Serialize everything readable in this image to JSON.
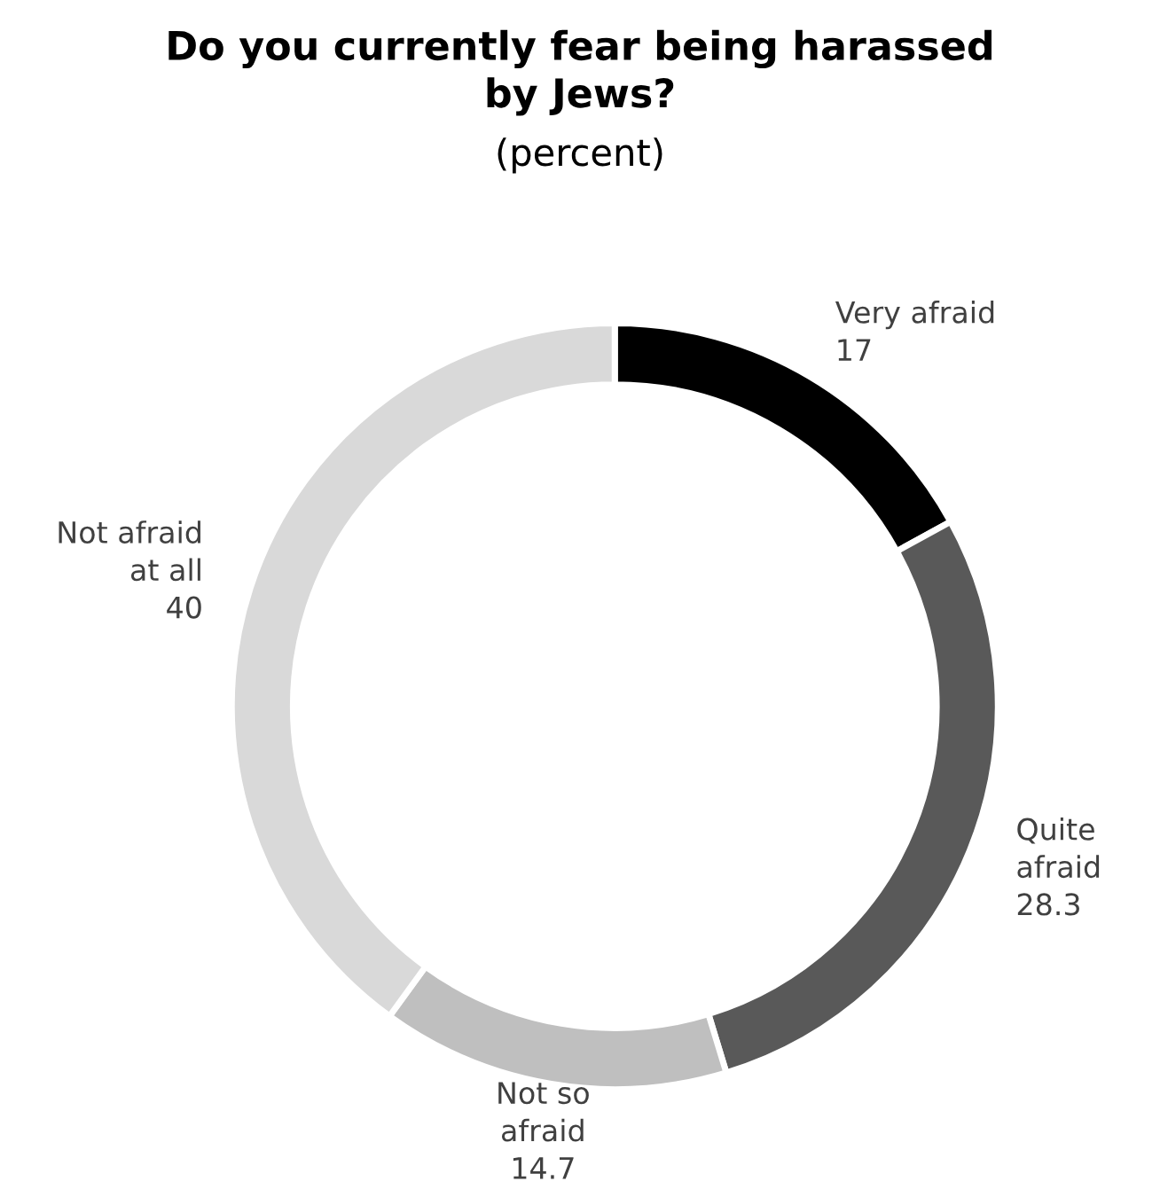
{
  "chart_data": {
    "type": "donut",
    "title": "Do you currently fear being harassed\nby Jews?",
    "subtitle": "(percent)",
    "categories": [
      "Very afraid",
      "Quite\nafraid",
      "Not so\nafraid",
      "Not afraid\nat all"
    ],
    "values": [
      17,
      28.3,
      14.7,
      40
    ],
    "colors": [
      "#000000",
      "#595959",
      "#bfbfbf",
      "#d9d9d9"
    ],
    "data_labels": true,
    "legend": false
  }
}
